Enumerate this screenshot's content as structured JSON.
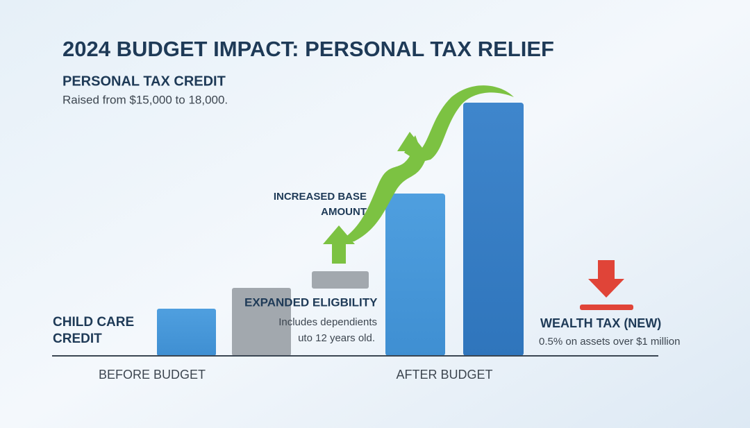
{
  "title": "2024 BUDGET IMPACT: PERSONAL TAX RELIEF",
  "personal_tax_credit": {
    "heading": "PERSONAL TAX CREDIT",
    "text": "Raised from $15,000 to 18,000."
  },
  "child_care_credit": {
    "heading_lines": [
      "CHILD CARE",
      "CREDIT"
    ]
  },
  "expanded_eligibility": {
    "heading": "EXPANDED ELIGBILITY",
    "text_lines": [
      "Includes dependients",
      "uto 12 years old."
    ]
  },
  "increased_base_amount": {
    "heading_lines": [
      "INCREASED BASE",
      "AMOUNT"
    ]
  },
  "wealth_tax": {
    "heading": "WEALTH TAX (NEW)",
    "text": "0.5% on assets over $1 million"
  },
  "periods": [
    "BEFORE BUDGET",
    "AFTER BUDGET"
  ]
}
